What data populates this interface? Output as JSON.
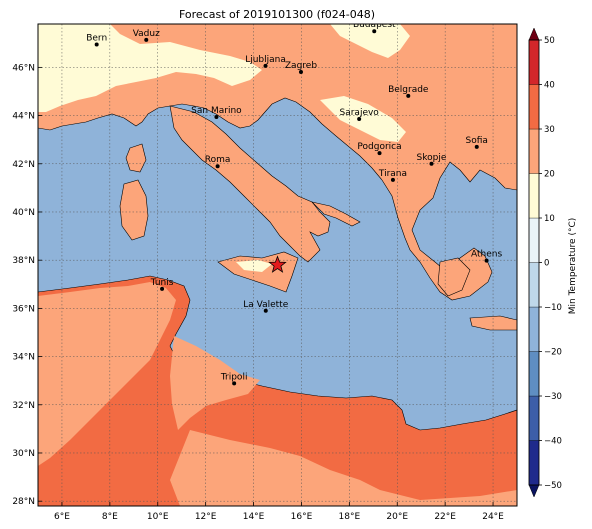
{
  "title": "Forecast of 2019101300 (f024-048)",
  "map": {
    "lon_range": [
      5,
      25
    ],
    "lat_range": [
      27.8,
      47.8
    ],
    "lon_ticks": [
      "6°E",
      "8°E",
      "10°E",
      "12°E",
      "14°E",
      "16°E",
      "18°E",
      "20°E",
      "22°E",
      "24°E"
    ],
    "lat_ticks": [
      "28°N",
      "30°N",
      "32°N",
      "34°N",
      "36°N",
      "38°N",
      "40°N",
      "42°N",
      "44°N",
      "46°N"
    ],
    "gridlines": true,
    "colors": {
      "sea": "#8fb3d9",
      "band_10_20": "#fca57a",
      "band_20_30": "#f26b43",
      "band_0_10": "#fffbd6",
      "land_border": "#000000"
    },
    "marker": {
      "type": "star",
      "color": "#e31a1c",
      "lon": 15.0,
      "lat": 37.8
    },
    "cities": [
      {
        "name": "Bern",
        "lon": 7.45,
        "lat": 46.95
      },
      {
        "name": "Vaduz",
        "lon": 9.52,
        "lat": 47.14
      },
      {
        "name": "Budapest",
        "lon": 19.04,
        "lat": 47.5
      },
      {
        "name": "Ljubljana",
        "lon": 14.5,
        "lat": 46.06
      },
      {
        "name": "Zagreb",
        "lon": 15.98,
        "lat": 45.81
      },
      {
        "name": "Belgrade",
        "lon": 20.46,
        "lat": 44.82
      },
      {
        "name": "San Marino",
        "lon": 12.45,
        "lat": 43.94
      },
      {
        "name": "Sarajevo",
        "lon": 18.41,
        "lat": 43.86
      },
      {
        "name": "Sofia",
        "lon": 23.32,
        "lat": 42.7
      },
      {
        "name": "Roma",
        "lon": 12.5,
        "lat": 41.9
      },
      {
        "name": "Podgorica",
        "lon": 19.26,
        "lat": 42.44
      },
      {
        "name": "Skopje",
        "lon": 21.43,
        "lat": 42.0
      },
      {
        "name": "Tirana",
        "lon": 19.82,
        "lat": 41.33
      },
      {
        "name": "Athens",
        "lon": 23.73,
        "lat": 37.98
      },
      {
        "name": "Tunis",
        "lon": 10.18,
        "lat": 36.81
      },
      {
        "name": "La Valette",
        "lon": 14.51,
        "lat": 35.9
      },
      {
        "name": "Tripoli",
        "lon": 13.19,
        "lat": 32.89
      }
    ]
  },
  "colorbar": {
    "label": "Min Temperature (°C)",
    "ticks": [
      "−50",
      "−40",
      "−30",
      "−20",
      "−10",
      "0",
      "10",
      "20",
      "30",
      "40",
      "50"
    ],
    "values": [
      -50,
      -40,
      -30,
      -20,
      -10,
      0,
      10,
      20,
      30,
      40,
      50
    ],
    "colors": [
      "#1f2a8c",
      "#3d5ea8",
      "#5f8ec2",
      "#8fb3d9",
      "#bfd8ea",
      "#eaf4f8",
      "#fffbd6",
      "#fca57a",
      "#f26b43",
      "#d3272a",
      "#99001a"
    ],
    "extend_colors": {
      "low": "#0b1460",
      "high": "#6e0014"
    }
  }
}
